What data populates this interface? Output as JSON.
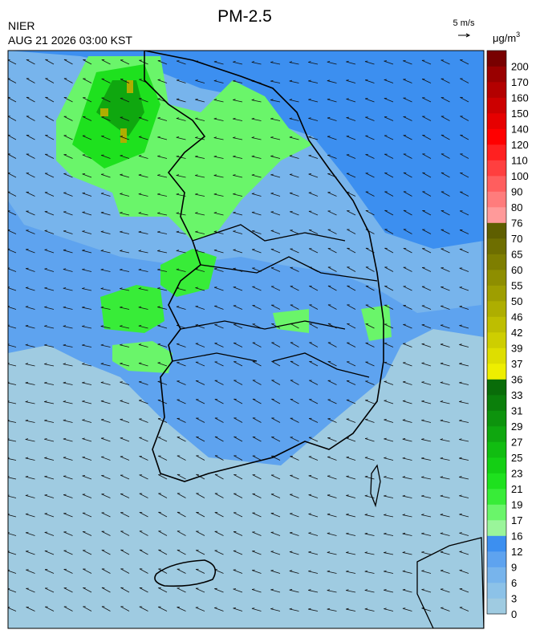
{
  "header": {
    "title": "PM-2.5",
    "agency": "NIER",
    "timestamp": "AUG 21 2026 03:00 KST",
    "wind_scale": "5 m/s"
  },
  "legend": {
    "unit_base": "μg/m",
    "unit_exp": "3",
    "labels": [
      0,
      3,
      6,
      9,
      12,
      16,
      17,
      19,
      21,
      23,
      25,
      27,
      29,
      31,
      33,
      36,
      37,
      39,
      42,
      46,
      50,
      55,
      60,
      65,
      70,
      76,
      80,
      90,
      100,
      110,
      120,
      140,
      150,
      160,
      170,
      200
    ],
    "colors": [
      "#9fcbe1",
      "#8cc2e8",
      "#77b4ec",
      "#5ea3ef",
      "#3c8ff0",
      "#9af59a",
      "#6af56a",
      "#38ec38",
      "#1ee11e",
      "#14cf14",
      "#11bd11",
      "#0fa70f",
      "#0d930d",
      "#0b7f0b",
      "#096c09",
      "#eeee00",
      "#dede00",
      "#cece00",
      "#bebe00",
      "#aeae00",
      "#9e9e00",
      "#8e8e00",
      "#7e7e00",
      "#6e6e00",
      "#5e5e00",
      "#ff9a9a",
      "#ff7c7c",
      "#ff5e5e",
      "#ff3f3f",
      "#ff2020",
      "#ff0000",
      "#e60000",
      "#cc0000",
      "#b30000",
      "#990000",
      "#780000"
    ]
  }
}
